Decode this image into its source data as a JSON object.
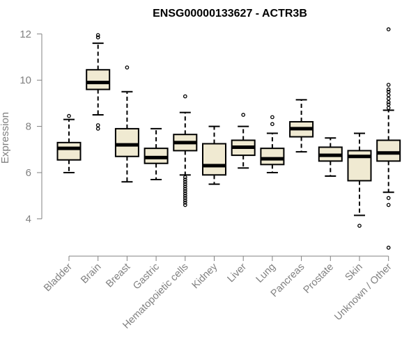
{
  "chart_data": {
    "type": "boxplot",
    "title": "ENSG00000133627 - ACTR3B",
    "xlabel": "",
    "ylabel": "Expression",
    "ylim": [
      2.6,
      12.3
    ],
    "yticks": [
      4,
      6,
      8,
      10,
      12
    ],
    "box_fill": "#f0ead2",
    "categories": [
      "Bladder",
      "Brain",
      "Breast",
      "Gastric",
      "Hematopoietic cells",
      "Kidney",
      "Liver",
      "Lung",
      "Pancreas",
      "Prostate",
      "Skin",
      "Unknown / Other"
    ],
    "boxes": [
      {
        "min": 6.0,
        "q1": 6.55,
        "median": 7.05,
        "q3": 7.3,
        "max": 8.3,
        "outliers": [
          8.45
        ]
      },
      {
        "min": 8.5,
        "q1": 9.6,
        "median": 9.9,
        "q3": 10.45,
        "max": 11.6,
        "outliers": [
          7.9,
          8.05,
          11.85,
          11.95
        ]
      },
      {
        "min": 5.6,
        "q1": 6.7,
        "median": 7.2,
        "q3": 7.9,
        "max": 9.5,
        "outliers": [
          10.55
        ]
      },
      {
        "min": 5.7,
        "q1": 6.4,
        "median": 6.65,
        "q3": 7.05,
        "max": 7.9,
        "outliers": []
      },
      {
        "min": 5.9,
        "q1": 6.95,
        "median": 7.3,
        "q3": 7.65,
        "max": 8.6,
        "outliers": [
          9.3,
          5.8,
          5.7,
          5.6,
          5.5,
          5.4,
          5.3,
          5.2,
          5.1,
          5.0,
          4.9,
          4.8,
          4.7,
          4.6
        ]
      },
      {
        "min": 5.5,
        "q1": 5.9,
        "median": 6.3,
        "q3": 7.25,
        "max": 8.0,
        "outliers": []
      },
      {
        "min": 6.2,
        "q1": 6.75,
        "median": 7.1,
        "q3": 7.4,
        "max": 8.0,
        "outliers": [
          8.5
        ]
      },
      {
        "min": 6.0,
        "q1": 6.35,
        "median": 6.6,
        "q3": 7.05,
        "max": 7.7,
        "outliers": [
          8.1,
          8.4
        ]
      },
      {
        "min": 6.9,
        "q1": 7.55,
        "median": 7.9,
        "q3": 8.2,
        "max": 9.15,
        "outliers": []
      },
      {
        "min": 5.85,
        "q1": 6.5,
        "median": 6.75,
        "q3": 7.1,
        "max": 7.5,
        "outliers": []
      },
      {
        "min": 4.15,
        "q1": 5.65,
        "median": 6.7,
        "q3": 6.95,
        "max": 7.7,
        "outliers": [
          3.7
        ]
      },
      {
        "min": 5.15,
        "q1": 6.5,
        "median": 6.85,
        "q3": 7.4,
        "max": 8.7,
        "outliers": [
          8.8,
          8.95,
          9.05,
          9.2,
          9.35,
          9.5,
          9.6,
          9.8,
          12.2,
          4.9,
          4.6,
          2.75
        ]
      }
    ]
  }
}
